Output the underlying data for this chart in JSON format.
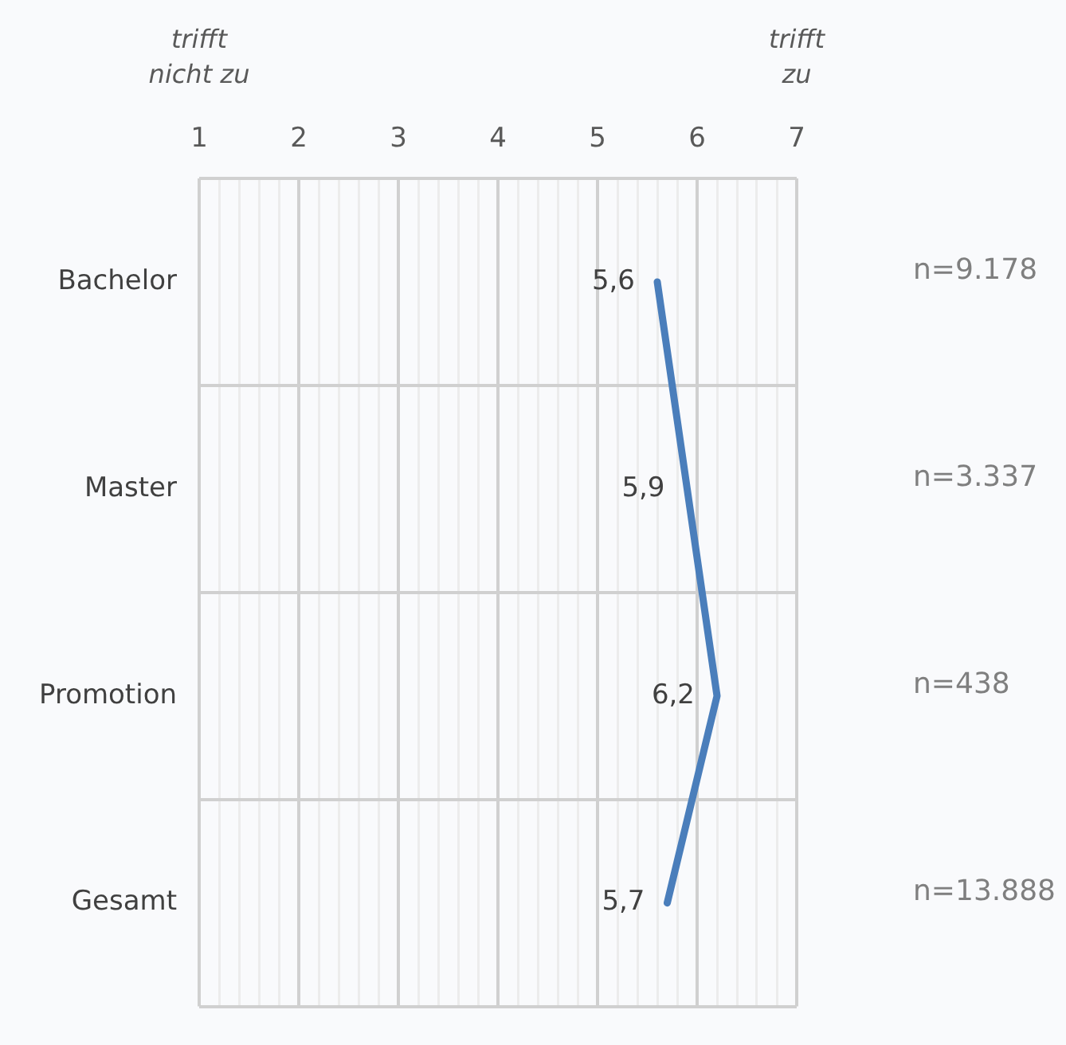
{
  "chart_data": {
    "type": "line",
    "orientation": "horizontal",
    "categories": [
      "Bachelor",
      "Master",
      "Promotion",
      "Gesamt"
    ],
    "values": [
      5.6,
      5.9,
      6.2,
      5.7
    ],
    "color": "#4a7ebb",
    "value_labels": [
      "5,6",
      "5,9",
      "6,2",
      "5,7"
    ],
    "xlim": [
      1,
      7
    ],
    "xticks": [
      1,
      {
        "value": 1.2,
        "label": null
      },
      {
        "value": 1.4,
        "label": null
      },
      {
        "value": 1.6,
        "label": null
      },
      {
        "value": 1.8,
        "label": null
      },
      2,
      {
        "value": 2.2,
        "label": null
      },
      {
        "value": 2.4,
        "label": null
      },
      {
        "value": 2.6,
        "label": null
      },
      {
        "value": 2.8,
        "label": null
      },
      3,
      {
        "value": 3.2,
        "label": null
      },
      {
        "value": 3.4,
        "label": null
      },
      {
        "value": 3.6,
        "label": null
      },
      {
        "value": 3.8,
        "label": null
      },
      4,
      {
        "value": 4.2,
        "label": null
      },
      {
        "value": 4.4,
        "label": null
      },
      {
        "value": 4.6,
        "label": null
      },
      {
        "value": 4.8,
        "label": null
      },
      5,
      {
        "value": 5.2,
        "label": null
      },
      {
        "value": 5.4,
        "label": null
      },
      {
        "value": 5.6,
        "label": null
      },
      {
        "value": 5.8,
        "label": null
      },
      6,
      {
        "value": 6.2,
        "label": null
      },
      {
        "value": 6.4,
        "label": null
      },
      {
        "value": 6.6,
        "label": null
      },
      {
        "value": 6.8,
        "label": null
      },
      7
    ],
    "grid": true,
    "marker": "none",
    "line_style": "solid",
    "legend": false,
    "annotations": [
      "trifft nicht zu",
      "trifft zu",
      "n=9.178",
      "n=3.337",
      "n=438",
      "n=13.888"
    ]
  }
}
